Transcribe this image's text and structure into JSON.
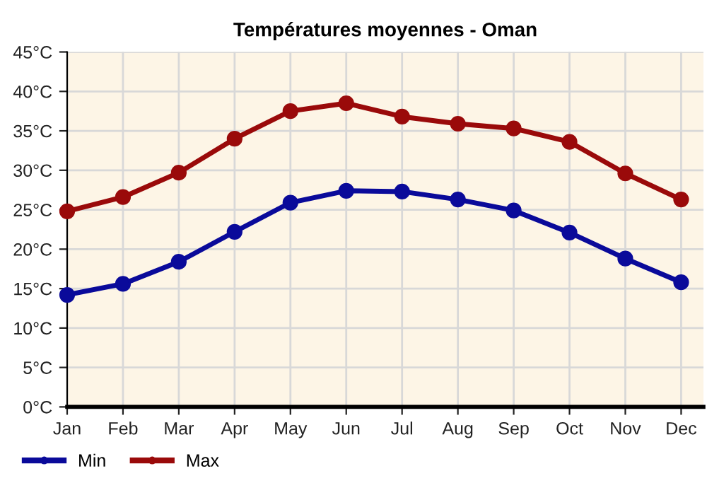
{
  "chart_data": {
    "type": "line",
    "title": "Températures moyennes - Oman",
    "categories": [
      "Jan",
      "Feb",
      "Mar",
      "Apr",
      "May",
      "Jun",
      "Jul",
      "Aug",
      "Sep",
      "Oct",
      "Nov",
      "Dec"
    ],
    "series": [
      {
        "name": "Min",
        "color": "#0a0a9a",
        "values": [
          14.2,
          15.6,
          18.4,
          22.2,
          25.9,
          27.4,
          27.3,
          26.3,
          24.9,
          22.1,
          18.8,
          15.8
        ]
      },
      {
        "name": "Max",
        "color": "#9a0a0a",
        "values": [
          24.8,
          26.6,
          29.7,
          34.0,
          37.5,
          38.5,
          36.8,
          35.9,
          35.3,
          33.6,
          29.6,
          26.3
        ]
      }
    ],
    "ylim": [
      0,
      45
    ],
    "yticks": [
      {
        "value": 0,
        "label": "0°C"
      },
      {
        "value": 5,
        "label": "5°C"
      },
      {
        "value": 10,
        "label": "10°C"
      },
      {
        "value": 15,
        "label": "15°C"
      },
      {
        "value": 20,
        "label": "20°C"
      },
      {
        "value": 25,
        "label": "25°C"
      },
      {
        "value": 30,
        "label": "30°C"
      },
      {
        "value": 35,
        "label": "35°C"
      },
      {
        "value": 40,
        "label": "40°C"
      },
      {
        "value": 45,
        "label": "45°C"
      }
    ],
    "grid": true,
    "legend": "bottom left",
    "marker": "circle",
    "line_style": "solid"
  }
}
